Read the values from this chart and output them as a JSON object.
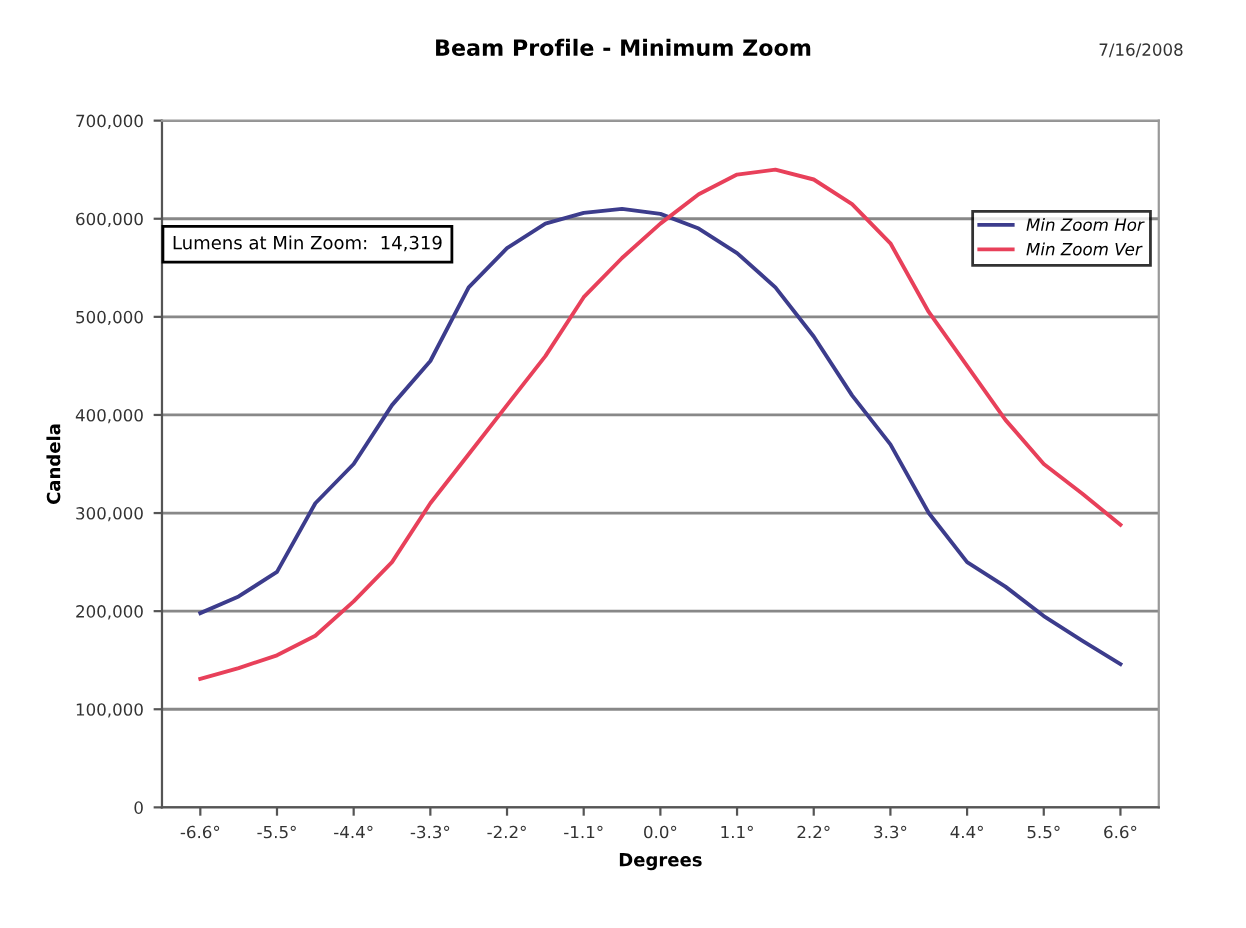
{
  "chart_data": {
    "type": "line",
    "title": "Beam Profile - Minimum Zoom",
    "xlabel": "Degrees",
    "ylabel": "Candela",
    "annotations": [
      "7/16/2008",
      {
        "text": "Lumens at Min Zoom:  14,319"
      }
    ],
    "x": [
      -6.6,
      -6.05,
      -5.5,
      -4.95,
      -4.4,
      -3.85,
      -3.3,
      -2.75,
      -2.2,
      -1.65,
      -1.1,
      -0.55,
      0,
      0.55,
      1.1,
      1.65,
      2.2,
      2.75,
      3.3,
      3.85,
      4.4,
      4.95,
      5.5,
      6.05,
      6.6
    ],
    "series": [
      {
        "name": "Min Zoom Hor",
        "color": "#3c3c8c",
        "values": [
          198000,
          215000,
          240000,
          310000,
          350000,
          410000,
          455000,
          530000,
          570000,
          595000,
          606000,
          610000,
          605000,
          590000,
          565000,
          530000,
          480000,
          420000,
          370000,
          300000,
          250000,
          225000,
          195000,
          170000,
          146000
        ]
      },
      {
        "name": "Min Zoom Ver",
        "color": "#e8405a",
        "values": [
          131000,
          142000,
          155000,
          175000,
          210000,
          250000,
          310000,
          360000,
          410000,
          460000,
          520000,
          560000,
          595000,
          625000,
          645000,
          650000,
          640000,
          615000,
          575000,
          505000,
          450000,
          395000,
          350000,
          320000,
          288000
        ]
      }
    ],
    "xlim": [
      -7.15,
      7.15
    ],
    "xticks": [
      {
        "value": -6.6,
        "label": "-6.6°"
      },
      {
        "value": -5.5,
        "label": "-5.5°"
      },
      {
        "value": -4.4,
        "label": "-4.4°"
      },
      {
        "value": -3.3,
        "label": "-3.3°"
      },
      {
        "value": -2.2,
        "label": "-2.2°"
      },
      {
        "value": -1.1,
        "label": "-1.1°"
      },
      {
        "value": 0,
        "label": "0.0°"
      },
      {
        "value": 1.1,
        "label": "1.1°"
      },
      {
        "value": 2.2,
        "label": "2.2°"
      },
      {
        "value": 3.3,
        "label": "3.3°"
      },
      {
        "value": 4.4,
        "label": "4.4°"
      },
      {
        "value": 5.5,
        "label": "5.5°"
      },
      {
        "value": 6.6,
        "label": "6.6°"
      }
    ],
    "ylim": [
      0,
      700000
    ],
    "yticks": [
      {
        "value": 0,
        "label": "0"
      },
      {
        "value": 100000,
        "label": "100,000"
      },
      {
        "value": 200000,
        "label": "200,000"
      },
      {
        "value": 300000,
        "label": "300,000"
      },
      {
        "value": 400000,
        "label": "400,000"
      },
      {
        "value": 500000,
        "label": "500,000"
      },
      {
        "value": 600000,
        "label": "600,000"
      },
      {
        "value": 700000,
        "label": "700,000"
      }
    ],
    "grid": "y",
    "legend": "top right",
    "marker": "none",
    "line_style": "solid"
  }
}
